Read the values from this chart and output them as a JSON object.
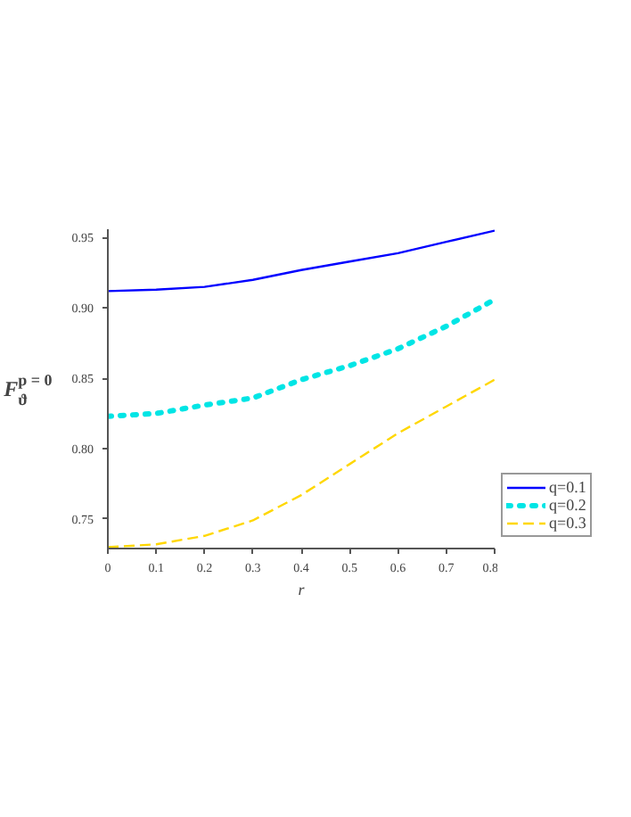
{
  "chart_data": {
    "type": "line",
    "xlabel": "r",
    "ylabel": "F$^{p = 0}$$_{ϑ}$",
    "x": [
      0,
      0.1,
      0.2,
      0.3,
      0.4,
      0.5,
      0.6,
      0.7,
      0.8
    ],
    "series": [
      {
        "name": "q=0.1",
        "color": "#0000ff",
        "line_style": "solid",
        "values": [
          0.912,
          0.913,
          0.915,
          0.92,
          0.927,
          0.933,
          0.939,
          0.947,
          0.955
        ]
      },
      {
        "name": "q=0.2",
        "color": "#00e5e5",
        "line_style": "dotted",
        "values": [
          0.823,
          0.825,
          0.831,
          0.836,
          0.849,
          0.859,
          0.871,
          0.887,
          0.906
        ]
      },
      {
        "name": "q=0.3",
        "color": "#ffd700",
        "line_style": "dashed",
        "values": [
          0.73,
          0.732,
          0.738,
          0.749,
          0.767,
          0.789,
          0.811,
          0.83,
          0.849
        ]
      }
    ],
    "xlim": [
      0,
      0.8
    ],
    "xticks": [
      0,
      0.1,
      0.2,
      0.3,
      0.4,
      0.5,
      0.6,
      0.7,
      0.8
    ],
    "ylim": [
      0.729,
      0.956
    ],
    "yticks": [
      {
        "value": 0.75,
        "label": "0.75"
      },
      {
        "value": 0.8,
        "label": "0.80"
      },
      {
        "value": 0.85,
        "label": "0.85"
      },
      {
        "value": 0.9,
        "label": "0.90"
      },
      {
        "value": 0.95,
        "label": "0.95"
      }
    ],
    "grid": false,
    "legend": "right",
    "marker": "none"
  }
}
